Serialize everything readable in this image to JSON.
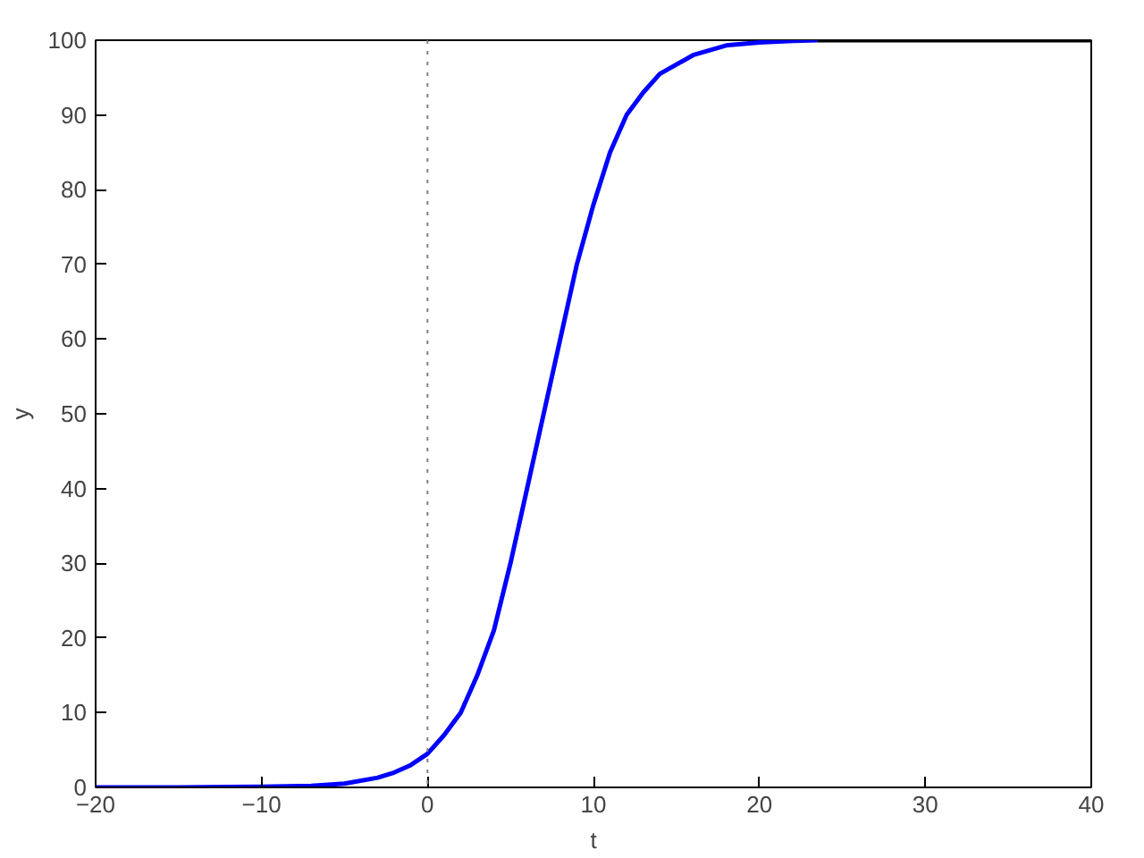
{
  "chart_data": {
    "type": "line",
    "xlabel": "t",
    "ylabel": "y",
    "xlim": [
      -20,
      40
    ],
    "ylim": [
      0,
      100
    ],
    "xticks": [
      -20,
      -10,
      0,
      10,
      20,
      30,
      40
    ],
    "yticks": [
      0,
      10,
      20,
      30,
      40,
      50,
      60,
      70,
      80,
      90,
      100
    ],
    "grid": false,
    "line_style": "solid",
    "marker": "none",
    "series": [
      {
        "color": "#0000ff",
        "x": [
          -20,
          -15,
          -10,
          -7,
          -5,
          -3,
          -2,
          -1,
          0,
          1,
          2,
          3,
          4,
          5,
          6,
          7,
          8,
          9,
          10,
          11,
          12,
          13,
          14,
          16,
          18,
          20,
          22,
          23.5
        ],
        "values": [
          0,
          0,
          0.1,
          0.2,
          0.5,
          1.3,
          2,
          3,
          4.5,
          7,
          10,
          15,
          21,
          30,
          40,
          50,
          60,
          70,
          78,
          85,
          90,
          93,
          95.5,
          98,
          99.3,
          99.7,
          99.9,
          100
        ]
      },
      {
        "color": "#000000",
        "x": [
          23.5,
          40
        ],
        "values": [
          100,
          100
        ]
      }
    ],
    "ref_lines": [
      {
        "axis": "x",
        "value": 0,
        "color": "#808080",
        "line_style": "dotted"
      }
    ]
  }
}
